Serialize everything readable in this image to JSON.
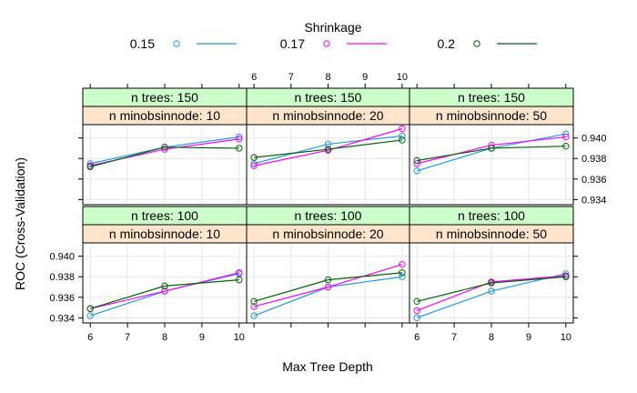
{
  "chart_data": {
    "type": "line",
    "layout": "lattice-grid",
    "xlabel": "Max Tree Depth",
    "ylabel": "ROC (Cross-Validation)",
    "x": [
      6,
      8,
      10
    ],
    "xticks": [
      6,
      7,
      8,
      9,
      10
    ],
    "yticks": [
      0.934,
      0.936,
      0.938,
      0.94
    ],
    "ytick_labels": [
      "0.934",
      "0.936",
      "0.938",
      "0.940"
    ],
    "xlim": [
      5.8,
      10.2
    ],
    "ylim": [
      0.9335,
      0.9413
    ],
    "legend": {
      "title": "Shrinkage",
      "placement": "top",
      "entries": [
        {
          "label": "0.15",
          "color": "#1E9BE6"
        },
        {
          "label": "0.17",
          "color": "#FF00FF"
        },
        {
          "label": "0.2",
          "color": "#006400"
        }
      ]
    },
    "strip_colors": {
      "top": "#CCFFCC",
      "bottom": "#FFE5CC"
    },
    "panels": [
      {
        "row": 0,
        "col": 0,
        "strip_top": "n trees: 150",
        "strip_bottom": "n minobsinnode: 10",
        "series": [
          {
            "name": "0.15",
            "values": [
              0.9375,
              0.9391,
              0.9401
            ]
          },
          {
            "name": "0.17",
            "values": [
              0.9373,
              0.9389,
              0.9399
            ]
          },
          {
            "name": "0.2",
            "values": [
              0.9372,
              0.9391,
              0.939
            ]
          }
        ]
      },
      {
        "row": 0,
        "col": 1,
        "strip_top": "n trees: 150",
        "strip_bottom": "n minobsinnode: 20",
        "series": [
          {
            "name": "0.15",
            "values": [
              0.9375,
              0.9394,
              0.9402
            ]
          },
          {
            "name": "0.17",
            "values": [
              0.9373,
              0.9388,
              0.9409
            ]
          },
          {
            "name": "0.2",
            "values": [
              0.9381,
              0.9389,
              0.9398
            ]
          }
        ]
      },
      {
        "row": 0,
        "col": 2,
        "strip_top": "n trees: 150",
        "strip_bottom": "n minobsinnode: 50",
        "series": [
          {
            "name": "0.15",
            "values": [
              0.9368,
              0.939,
              0.9404
            ]
          },
          {
            "name": "0.17",
            "values": [
              0.9375,
              0.9393,
              0.9401
            ]
          },
          {
            "name": "0.2",
            "values": [
              0.9378,
              0.939,
              0.9392
            ]
          }
        ]
      },
      {
        "row": 1,
        "col": 0,
        "strip_top": "n trees: 100",
        "strip_bottom": "n minobsinnode: 10",
        "series": [
          {
            "name": "0.15",
            "values": [
              0.9342,
              0.9366,
              0.9383
            ]
          },
          {
            "name": "0.17",
            "values": [
              0.9349,
              0.9366,
              0.9384
            ]
          },
          {
            "name": "0.2",
            "values": [
              0.9349,
              0.9371,
              0.9377
            ]
          }
        ]
      },
      {
        "row": 1,
        "col": 1,
        "strip_top": "n trees: 100",
        "strip_bottom": "n minobsinnode: 20",
        "series": [
          {
            "name": "0.15",
            "values": [
              0.9342,
              0.937,
              0.938
            ]
          },
          {
            "name": "0.17",
            "values": [
              0.9351,
              0.937,
              0.9392
            ]
          },
          {
            "name": "0.2",
            "values": [
              0.9356,
              0.9377,
              0.9384
            ]
          }
        ]
      },
      {
        "row": 1,
        "col": 2,
        "strip_top": "n trees: 100",
        "strip_bottom": "n minobsinnode: 50",
        "series": [
          {
            "name": "0.15",
            "values": [
              0.934,
              0.9366,
              0.9383
            ]
          },
          {
            "name": "0.17",
            "values": [
              0.9347,
              0.9375,
              0.9381
            ]
          },
          {
            "name": "0.2",
            "values": [
              0.9356,
              0.9374,
              0.938
            ]
          }
        ]
      }
    ]
  }
}
